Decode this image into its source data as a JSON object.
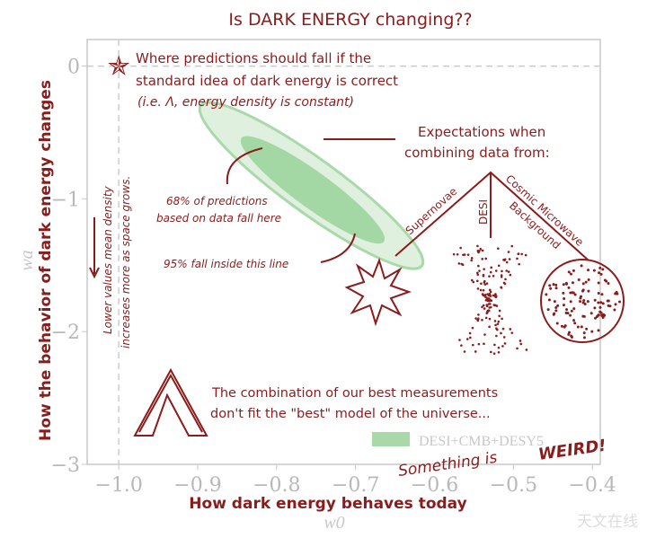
{
  "chart_data": {
    "type": "scatter",
    "title": "Is DARK ENERGY changing??",
    "xlabel": "How dark energy behaves today",
    "xsymbol": "w0",
    "ylabel": "How the behavior of dark energy changes",
    "ysymbol": "wa",
    "xlim": [
      -1.04,
      -0.39
    ],
    "ylim": [
      -3,
      0.2
    ],
    "xticks": [
      -1.0,
      -0.9,
      -0.8,
      -0.7,
      -0.6,
      -0.5,
      -0.4
    ],
    "xtick_labels": [
      "−1.0",
      "−0.9",
      "−0.8",
      "−0.7",
      "−0.6",
      "−0.5",
      "−0.4"
    ],
    "yticks": [
      0,
      -1,
      -2,
      -3
    ],
    "ytick_labels": [
      "0",
      "−1",
      "−2",
      "−3"
    ],
    "grid": false,
    "reference_point": {
      "w0": -1.0,
      "wa": 0
    },
    "contour": {
      "name": "DESI+CMB+DESY5",
      "center": {
        "w0": -0.756,
        "wa": -0.9
      },
      "levels": [
        "68%",
        "95%"
      ],
      "color": "#a9d9a9",
      "inner_color": "#8fcf8f"
    },
    "legend": {
      "position": "lower-right",
      "label": "DESI+CMB+DESY5"
    },
    "colors": {
      "annotation": "#8a1c1c",
      "axis": "#b8b8b8"
    }
  },
  "annotations": {
    "star_1": "Where predictions should fall if the",
    "star_2": "standard idea of dark energy is correct",
    "star_3": "(i.e. Λ, energy density is constant)",
    "exp_1": "Expectations when",
    "exp_2": "combining data from:",
    "sn": "Supernovae",
    "desi": "DESI",
    "cmb_1": "Cosmic Microwave",
    "cmb_2": "Background",
    "p68_1": "68% of predictions",
    "p68_2": "based on data fall here",
    "p95": "95% fall inside this line",
    "lower_1": "Lower values mean density",
    "lower_2": "increases more as space grows.",
    "combo_1": "The combination of our best measurements",
    "combo_2": "don't fit the \"best\" model of the universe...",
    "weird_1": "Something is",
    "weird_2": "WEIRD!"
  },
  "watermark": "天文在线"
}
